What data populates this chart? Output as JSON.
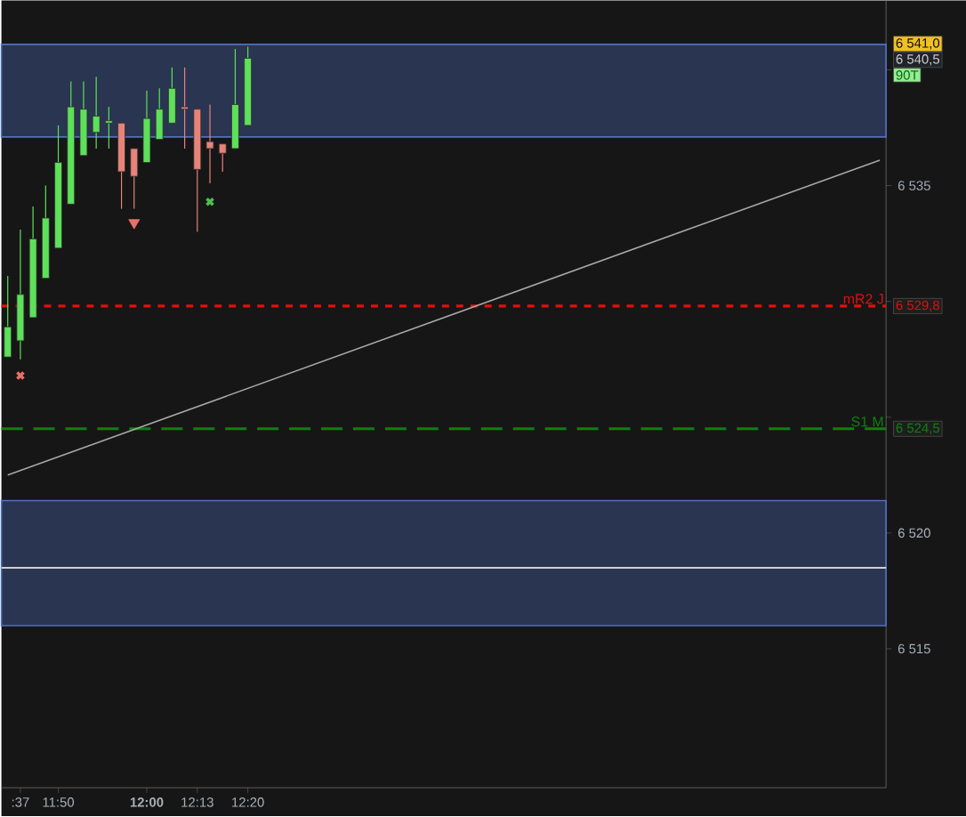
{
  "chart_data": {
    "type": "candlestick",
    "categories": [
      null,
      ":37",
      null,
      null,
      "11:50",
      null,
      null,
      null,
      null,
      null,
      null,
      "**12:00**",
      null,
      null,
      null,
      "12:13",
      null,
      null,
      null,
      "12:20",
      null,
      null,
      null,
      null,
      null,
      null,
      null,
      null,
      null,
      null,
      null,
      null,
      null,
      null,
      null,
      null,
      null,
      null,
      null,
      null,
      null,
      null,
      null,
      null,
      null,
      null,
      null,
      null,
      null,
      null,
      null,
      null,
      null,
      null,
      null,
      null,
      null,
      null,
      null,
      null,
      null,
      null,
      null,
      null,
      null,
      null,
      null,
      null,
      null,
      null
    ],
    "ohlc": [
      [
        6527.6,
        6531.1,
        6527.6,
        6528.9
      ],
      [
        6528.3,
        6533.1,
        6527.5,
        6530.3
      ],
      [
        6529.3,
        6534.1,
        6529.3,
        6532.7
      ],
      [
        6531.0,
        6535.0,
        6531.0,
        6533.6
      ],
      [
        6532.3,
        6537.6,
        6532.3,
        6536.0
      ],
      [
        6534.2,
        6539.5,
        6534.2,
        6538.4
      ],
      [
        6536.3,
        6539.5,
        6536.3,
        6538.3
      ],
      [
        6537.3,
        6539.7,
        6536.6,
        6538.0
      ],
      [
        6537.7,
        6538.4,
        6536.6,
        6537.8
      ],
      [
        6537.7,
        6537.7,
        6534.0,
        6535.6
      ],
      [
        6536.6,
        6536.6,
        6534.0,
        6535.4
      ],
      [
        6536.0,
        6539.1,
        6536.0,
        6537.9
      ],
      [
        6537.0,
        6539.2,
        6537.0,
        6538.3
      ],
      [
        6537.7,
        6540.1,
        6537.7,
        6539.2
      ],
      [
        6538.4,
        6540.1,
        6536.6,
        6538.3
      ],
      [
        6538.3,
        6538.3,
        6533.0,
        6535.7
      ],
      [
        6536.9,
        6538.5,
        6535.1,
        6536.6
      ],
      [
        6536.8,
        6536.8,
        6535.6,
        6536.4
      ],
      [
        6536.6,
        6540.9,
        6536.6,
        6538.5
      ],
      [
        6537.6,
        6541.0,
        6537.6,
        6540.5
      ],
      null,
      null,
      null,
      null,
      null,
      null,
      null,
      null,
      null,
      null,
      null,
      null,
      null,
      null,
      null,
      null,
      null,
      null,
      null,
      null,
      null,
      null,
      null,
      null,
      null,
      null,
      null,
      null,
      null,
      null,
      null,
      null,
      null,
      null,
      null,
      null,
      null,
      null,
      null,
      null,
      null,
      null,
      null,
      null,
      null,
      null,
      null,
      null,
      null,
      null
    ],
    "colors": [
      "#5ee05a",
      "#5ee05a",
      "#5ee05a",
      "#5ee05a",
      "#5ee05a",
      "#5ee05a",
      "#5ee05a",
      "#5ee05a",
      "#5ee05a",
      "#e8837a",
      "#e8837a",
      "#5ee05a",
      "#5ee05a",
      "#5ee05a",
      "#e8837a",
      "#e8837a",
      "#e8837a",
      "#e8837a",
      "#5ee05a",
      "#5ee05a",
      null,
      null,
      null,
      null,
      null,
      null,
      null,
      null,
      null,
      null,
      null,
      null,
      null,
      null,
      null,
      null,
      null,
      null,
      null,
      null,
      null,
      null,
      null,
      null,
      null,
      null,
      null,
      null,
      null,
      null,
      null,
      null,
      null,
      null,
      null,
      null,
      null,
      null,
      null,
      null,
      null,
      null,
      null,
      null,
      null,
      null,
      null,
      null,
      null,
      null
    ],
    "series": [
      {
        "type": "line",
        "color": "#a8a8a8",
        "values": [
          6522.5,
          null,
          null,
          null,
          null,
          null,
          null,
          null,
          null,
          null,
          null,
          null,
          null,
          null,
          null,
          null,
          null,
          null,
          null,
          null,
          null,
          null,
          null,
          null,
          null,
          null,
          null,
          null,
          null,
          null,
          null,
          null,
          null,
          null,
          null,
          null,
          null,
          null,
          null,
          null,
          null,
          null,
          null,
          null,
          null,
          null,
          null,
          null,
          null,
          null,
          null,
          null,
          null,
          null,
          null,
          null,
          null,
          null,
          null,
          null,
          null,
          null,
          null,
          null,
          null,
          null,
          null,
          null,
          null,
          6536.1
        ]
      },
      {
        "type": "scatter",
        "marker": "cross",
        "color": "#e8706a",
        "values": [
          null,
          6526.8,
          null,
          null,
          null,
          null,
          null,
          null,
          null,
          null,
          null,
          null,
          null,
          null,
          null,
          null,
          null,
          null,
          null,
          null,
          null,
          null,
          null,
          null,
          null,
          null,
          null,
          null,
          null,
          null,
          null,
          null,
          null,
          null,
          null,
          null,
          null,
          null,
          null,
          null,
          null,
          null,
          null,
          null,
          null,
          null,
          null,
          null,
          null,
          null,
          null,
          null,
          null,
          null,
          null,
          null,
          null,
          null,
          null,
          null,
          null,
          null,
          null,
          null,
          null,
          null,
          null,
          null,
          null,
          null
        ]
      },
      {
        "type": "scatter",
        "marker": "triangle",
        "color": "#e8706a",
        "values": [
          null,
          null,
          null,
          null,
          null,
          null,
          null,
          null,
          null,
          null,
          6533.4,
          null,
          null,
          null,
          null,
          null,
          null,
          null,
          null,
          null,
          null,
          null,
          null,
          null,
          null,
          null,
          null,
          null,
          null,
          null,
          null,
          null,
          null,
          null,
          null,
          null,
          null,
          null,
          null,
          null,
          null,
          null,
          null,
          null,
          null,
          null,
          null,
          null,
          null,
          null,
          null,
          null,
          null,
          null,
          null,
          null,
          null,
          null,
          null,
          null,
          null,
          null,
          null,
          null,
          null,
          null,
          null,
          null,
          null,
          null
        ]
      },
      {
        "type": "scatter",
        "marker": "cross",
        "color": "#4cc04c",
        "values": [
          null,
          null,
          null,
          null,
          null,
          null,
          null,
          null,
          null,
          null,
          null,
          null,
          null,
          null,
          null,
          null,
          6534.3,
          null,
          null,
          null,
          null,
          null,
          null,
          null,
          null,
          null,
          null,
          null,
          null,
          null,
          null,
          null,
          null,
          null,
          null,
          null,
          null,
          null,
          null,
          null,
          null,
          null,
          null,
          null,
          null,
          null,
          null,
          null,
          null,
          null,
          null,
          null,
          null,
          null,
          null,
          null,
          null,
          null,
          null,
          null,
          null,
          null,
          null,
          null,
          null,
          null,
          null,
          null,
          null,
          null
        ]
      }
    ],
    "ylim": [
      6509,
      6543
    ],
    "yticks": [
      {
        "value": 6515,
        "label": "6 515"
      },
      {
        "value": 6520,
        "label": "6 520"
      },
      {
        "value": 6525,
        "label": null
      },
      {
        "value": 6530,
        "label": null
      },
      {
        "value": 6535,
        "label": "6 535"
      },
      {
        "value": 6540,
        "label": null
      }
    ],
    "ref_lines": [
      {
        "axis": "y",
        "value": 6529.8,
        "label": "mR2 J",
        "color": "#e01010",
        "line_style": "dotted"
      },
      {
        "axis": "y",
        "value": 6524.5,
        "label": "S1 M",
        "color": "#108010",
        "line_style": "dashed"
      },
      {
        "axis": "y",
        "value": 6518.5,
        "color": "#d0d0d0",
        "line_style": "solid"
      }
    ],
    "bands": [
      {
        "axis": "y",
        "from": 6537.1,
        "to": 6541.1,
        "color": "#5070c0"
      },
      {
        "axis": "y",
        "from": 6516.0,
        "to": 6521.4,
        "color": "#5070c0"
      }
    ],
    "annotations": [
      "6 541,0",
      "6 540,5",
      "90T",
      "6 529,8",
      "6 524,5"
    ],
    "grid": false
  }
}
